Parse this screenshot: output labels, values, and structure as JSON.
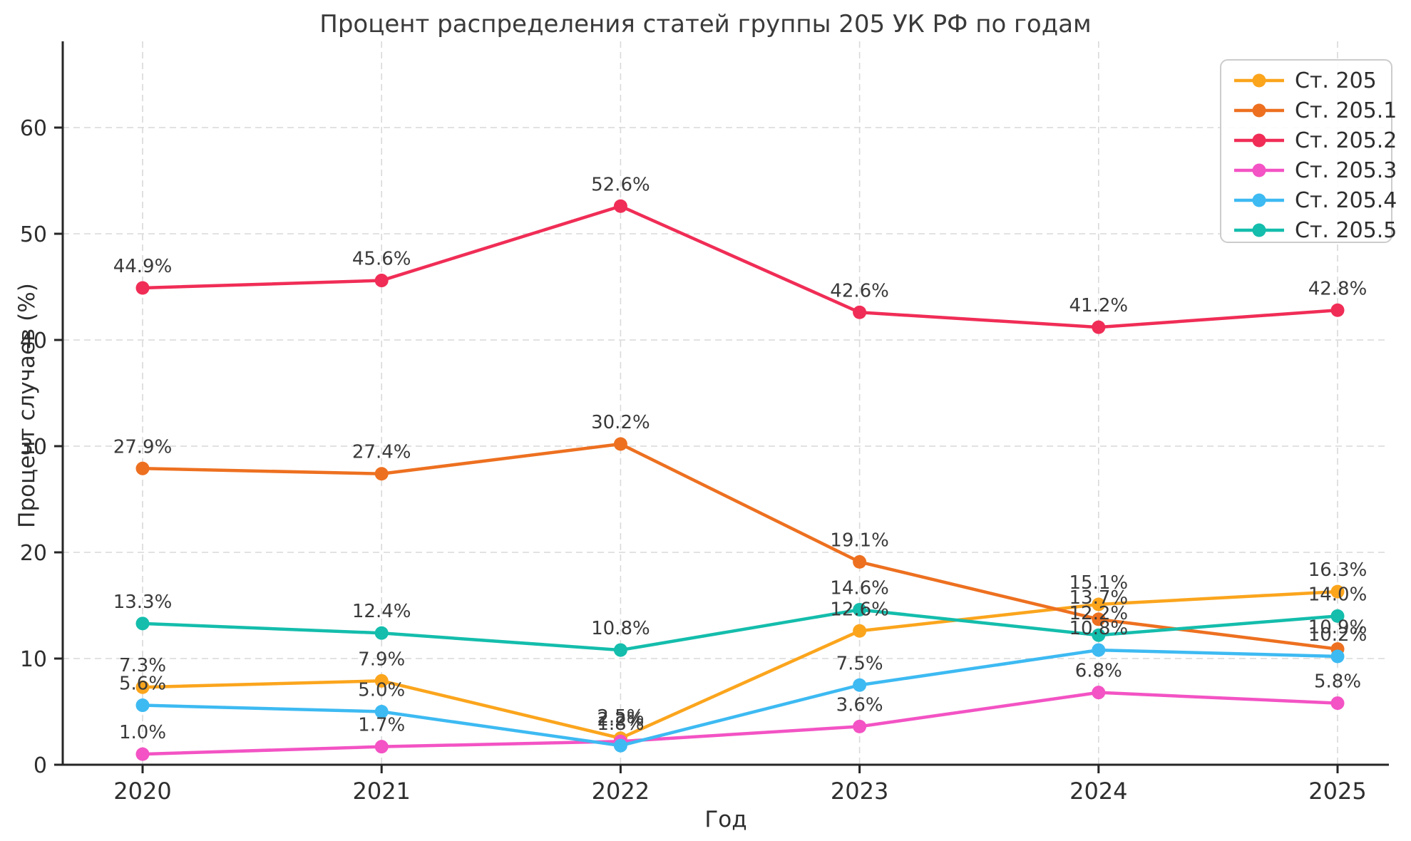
{
  "title": "Процент распределения статей группы 205 УК РФ по годам",
  "xlabel": "Год",
  "ylabel": "Процент случаев (%)",
  "chart_data": {
    "type": "line",
    "x": [
      2020,
      2021,
      2022,
      2023,
      2024,
      2025
    ],
    "x_tick_labels": [
      "2020",
      "2021",
      "2022",
      "2023",
      "2024",
      "2025"
    ],
    "y_ticks": [
      0,
      10,
      20,
      30,
      40,
      50,
      60
    ],
    "y_tick_labels": [
      "0",
      "10",
      "20",
      "30",
      "40",
      "50",
      "60"
    ],
    "ylim": [
      0,
      68.1
    ],
    "grid": true,
    "grid_style": "dashed",
    "legend_position": "upper right",
    "marker": "circle",
    "series": [
      {
        "name": "Ст. 205",
        "color": "#FBA51D",
        "values": [
          7.3,
          7.9,
          2.5,
          12.6,
          15.1,
          16.3
        ],
        "labels": [
          "7.3%",
          "7.9%",
          "2.5%",
          "12.6%",
          "15.1%",
          "16.3%"
        ]
      },
      {
        "name": "Ст. 205.1",
        "color": "#ED7020",
        "values": [
          27.9,
          27.4,
          30.2,
          19.1,
          13.7,
          10.9
        ],
        "labels": [
          "27.9%",
          "27.4%",
          "30.2%",
          "19.1%",
          "13.7%",
          "10.9%"
        ]
      },
      {
        "name": "Ст. 205.2",
        "color": "#F02D56",
        "values": [
          44.9,
          45.6,
          52.6,
          42.6,
          41.2,
          42.8
        ],
        "labels": [
          "44.9%",
          "45.6%",
          "52.6%",
          "42.6%",
          "41.2%",
          "42.8%"
        ]
      },
      {
        "name": "Ст. 205.3",
        "color": "#F353C4",
        "values": [
          1.0,
          1.7,
          2.2,
          3.6,
          6.8,
          5.8
        ],
        "labels": [
          "1.0%",
          "1.7%",
          "2.2%",
          "3.6%",
          "6.8%",
          "5.8%"
        ]
      },
      {
        "name": "Ст. 205.4",
        "color": "#3DBAF2",
        "values": [
          5.6,
          5.0,
          1.8,
          7.5,
          10.8,
          10.2
        ],
        "labels": [
          "5.6%",
          "5.0%",
          "1.8%",
          "7.5%",
          "10.8%",
          "10.2%"
        ]
      },
      {
        "name": "Ст. 205.5",
        "color": "#14BDAC",
        "values": [
          13.3,
          12.4,
          10.8,
          14.6,
          12.2,
          14.0
        ],
        "labels": [
          "13.3%",
          "12.4%",
          "10.8%",
          "14.6%",
          "12.2%",
          "14.0%"
        ]
      }
    ]
  },
  "style_colors": {
    "spine": "#262626",
    "grid": "#d9d9d9",
    "tick_label": "#2e2e2e",
    "point_label": "#3a3a3a",
    "legend_border": "#cccccc",
    "legend_text": "#2e2e2e",
    "background": "#ffffff"
  }
}
